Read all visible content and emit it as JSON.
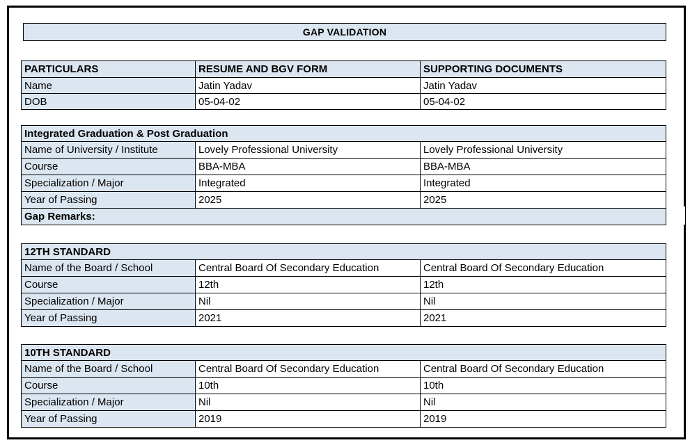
{
  "title_banner": {
    "text": "GAP VALIDATION"
  },
  "particulars": {
    "headers": [
      "PARTICULARS",
      "RESUME AND BGV FORM",
      "SUPPORTING DOCUMENTS"
    ],
    "rows": [
      {
        "label": "Name",
        "resume": "Jatin Yadav",
        "supporting": "Jatin Yadav"
      },
      {
        "label": "DOB",
        "resume": "05-04-02",
        "supporting": "05-04-02"
      }
    ]
  },
  "sections": [
    {
      "title": "Integrated Graduation & Post Graduation",
      "rows": [
        {
          "label": "Name of University / Institute",
          "resume": "Lovely Professional University",
          "supporting": "Lovely Professional University"
        },
        {
          "label": "Course",
          "resume": "BBA-MBA",
          "supporting": "BBA-MBA"
        },
        {
          "label": "Specialization / Major",
          "resume": "Integrated",
          "supporting": "Integrated"
        },
        {
          "label": "Year of Passing",
          "resume": "2025",
          "supporting": "2025"
        }
      ],
      "footer_note": "Gap Remarks:"
    },
    {
      "title": "12TH STANDARD",
      "rows": [
        {
          "label": "Name of the Board / School",
          "resume": "Central Board Of Secondary Education",
          "supporting": "Central Board Of Secondary Education"
        },
        {
          "label": "Course",
          "resume": "12th",
          "supporting": "12th"
        },
        {
          "label": "Specialization / Major",
          "resume": "Nil",
          "supporting": "Nil"
        },
        {
          "label": "Year of Passing",
          "resume": "2021",
          "supporting": "2021"
        }
      ],
      "footer_note": null
    },
    {
      "title": "10TH STANDARD",
      "rows": [
        {
          "label": "Name of the Board / School",
          "resume": "Central Board Of Secondary Education",
          "supporting": "Central Board Of Secondary Education"
        },
        {
          "label": "Course",
          "resume": "10th",
          "supporting": "10th"
        },
        {
          "label": "Specialization / Major",
          "resume": "Nil",
          "supporting": "Nil"
        },
        {
          "label": "Year of Passing",
          "resume": "2019",
          "supporting": "2019"
        }
      ],
      "footer_note": null
    }
  ],
  "colors": {
    "header_fill": "#dce6f1",
    "border": "#000000",
    "page_bg": "#ffffff",
    "text": "#000000"
  }
}
